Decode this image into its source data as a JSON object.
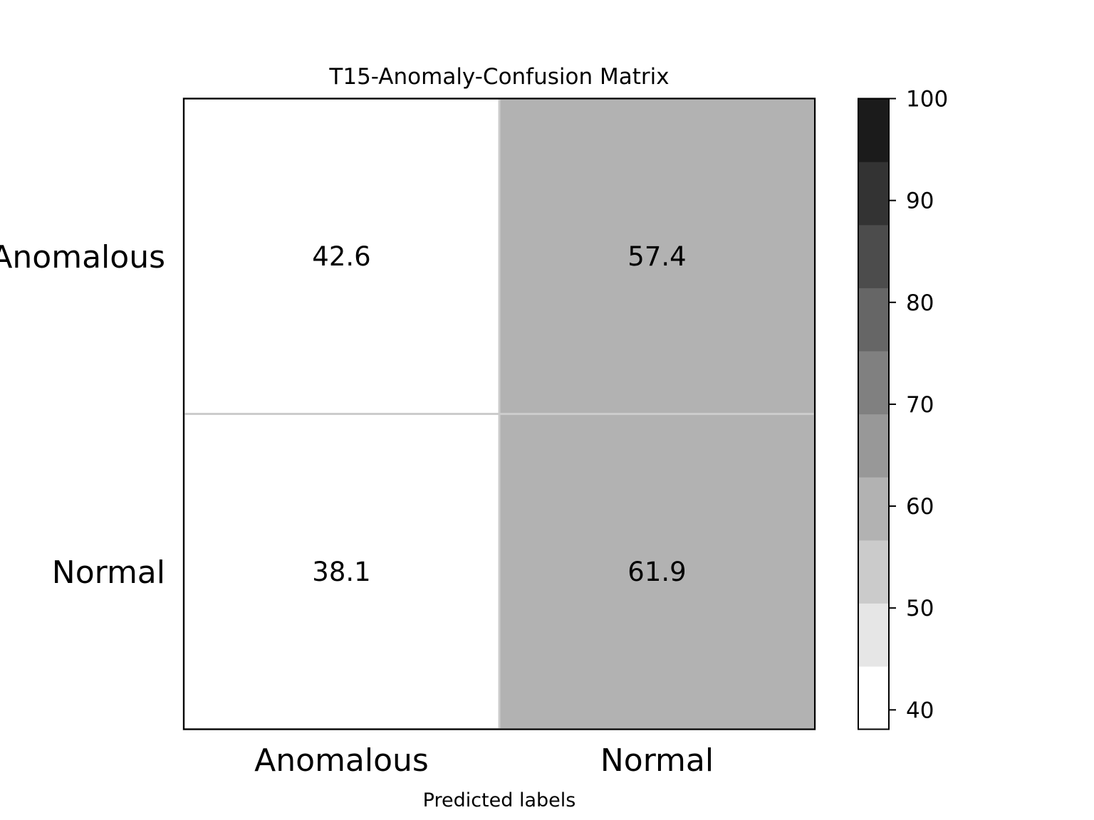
{
  "chart_data": {
    "type": "heatmap",
    "title": "T15-Anomaly-Confusion Matrix",
    "xlabel": "Predicted labels",
    "ylabel": "",
    "x_categories": [
      "Anomalous",
      "Normal"
    ],
    "y_categories": [
      "Anomalous",
      "Normal"
    ],
    "values": [
      [
        42.6,
        57.4
      ],
      [
        38.1,
        61.9
      ]
    ],
    "value_labels": [
      [
        "42.6",
        "57.4"
      ],
      [
        "38.1",
        "61.9"
      ]
    ],
    "colorbar": {
      "range": [
        38.1,
        100
      ],
      "ticks": [
        40,
        50,
        60,
        70,
        80,
        90,
        100
      ],
      "tick_labels": [
        "40",
        "50",
        "60",
        "70",
        "80",
        "90",
        "100"
      ],
      "levels": [
        {
          "from": 38.1,
          "to": 44.29,
          "color": "#ffffff"
        },
        {
          "from": 44.29,
          "to": 50.48,
          "color": "#e6e6e6"
        },
        {
          "from": 50.48,
          "to": 56.67,
          "color": "#cbcbcb"
        },
        {
          "from": 56.67,
          "to": 62.86,
          "color": "#b2b2b2"
        },
        {
          "from": 62.86,
          "to": 69.05,
          "color": "#989898"
        },
        {
          "from": 69.05,
          "to": 75.24,
          "color": "#808080"
        },
        {
          "from": 75.24,
          "to": 81.43,
          "color": "#666666"
        },
        {
          "from": 81.43,
          "to": 87.62,
          "color": "#4c4c4c"
        },
        {
          "from": 87.62,
          "to": 93.81,
          "color": "#333333"
        },
        {
          "from": 93.81,
          "to": 100,
          "color": "#1b1b1b"
        }
      ]
    },
    "cell_border_color": "#cccccc",
    "text_color_light": "#ffffff",
    "text_color_dark": "#000000"
  }
}
